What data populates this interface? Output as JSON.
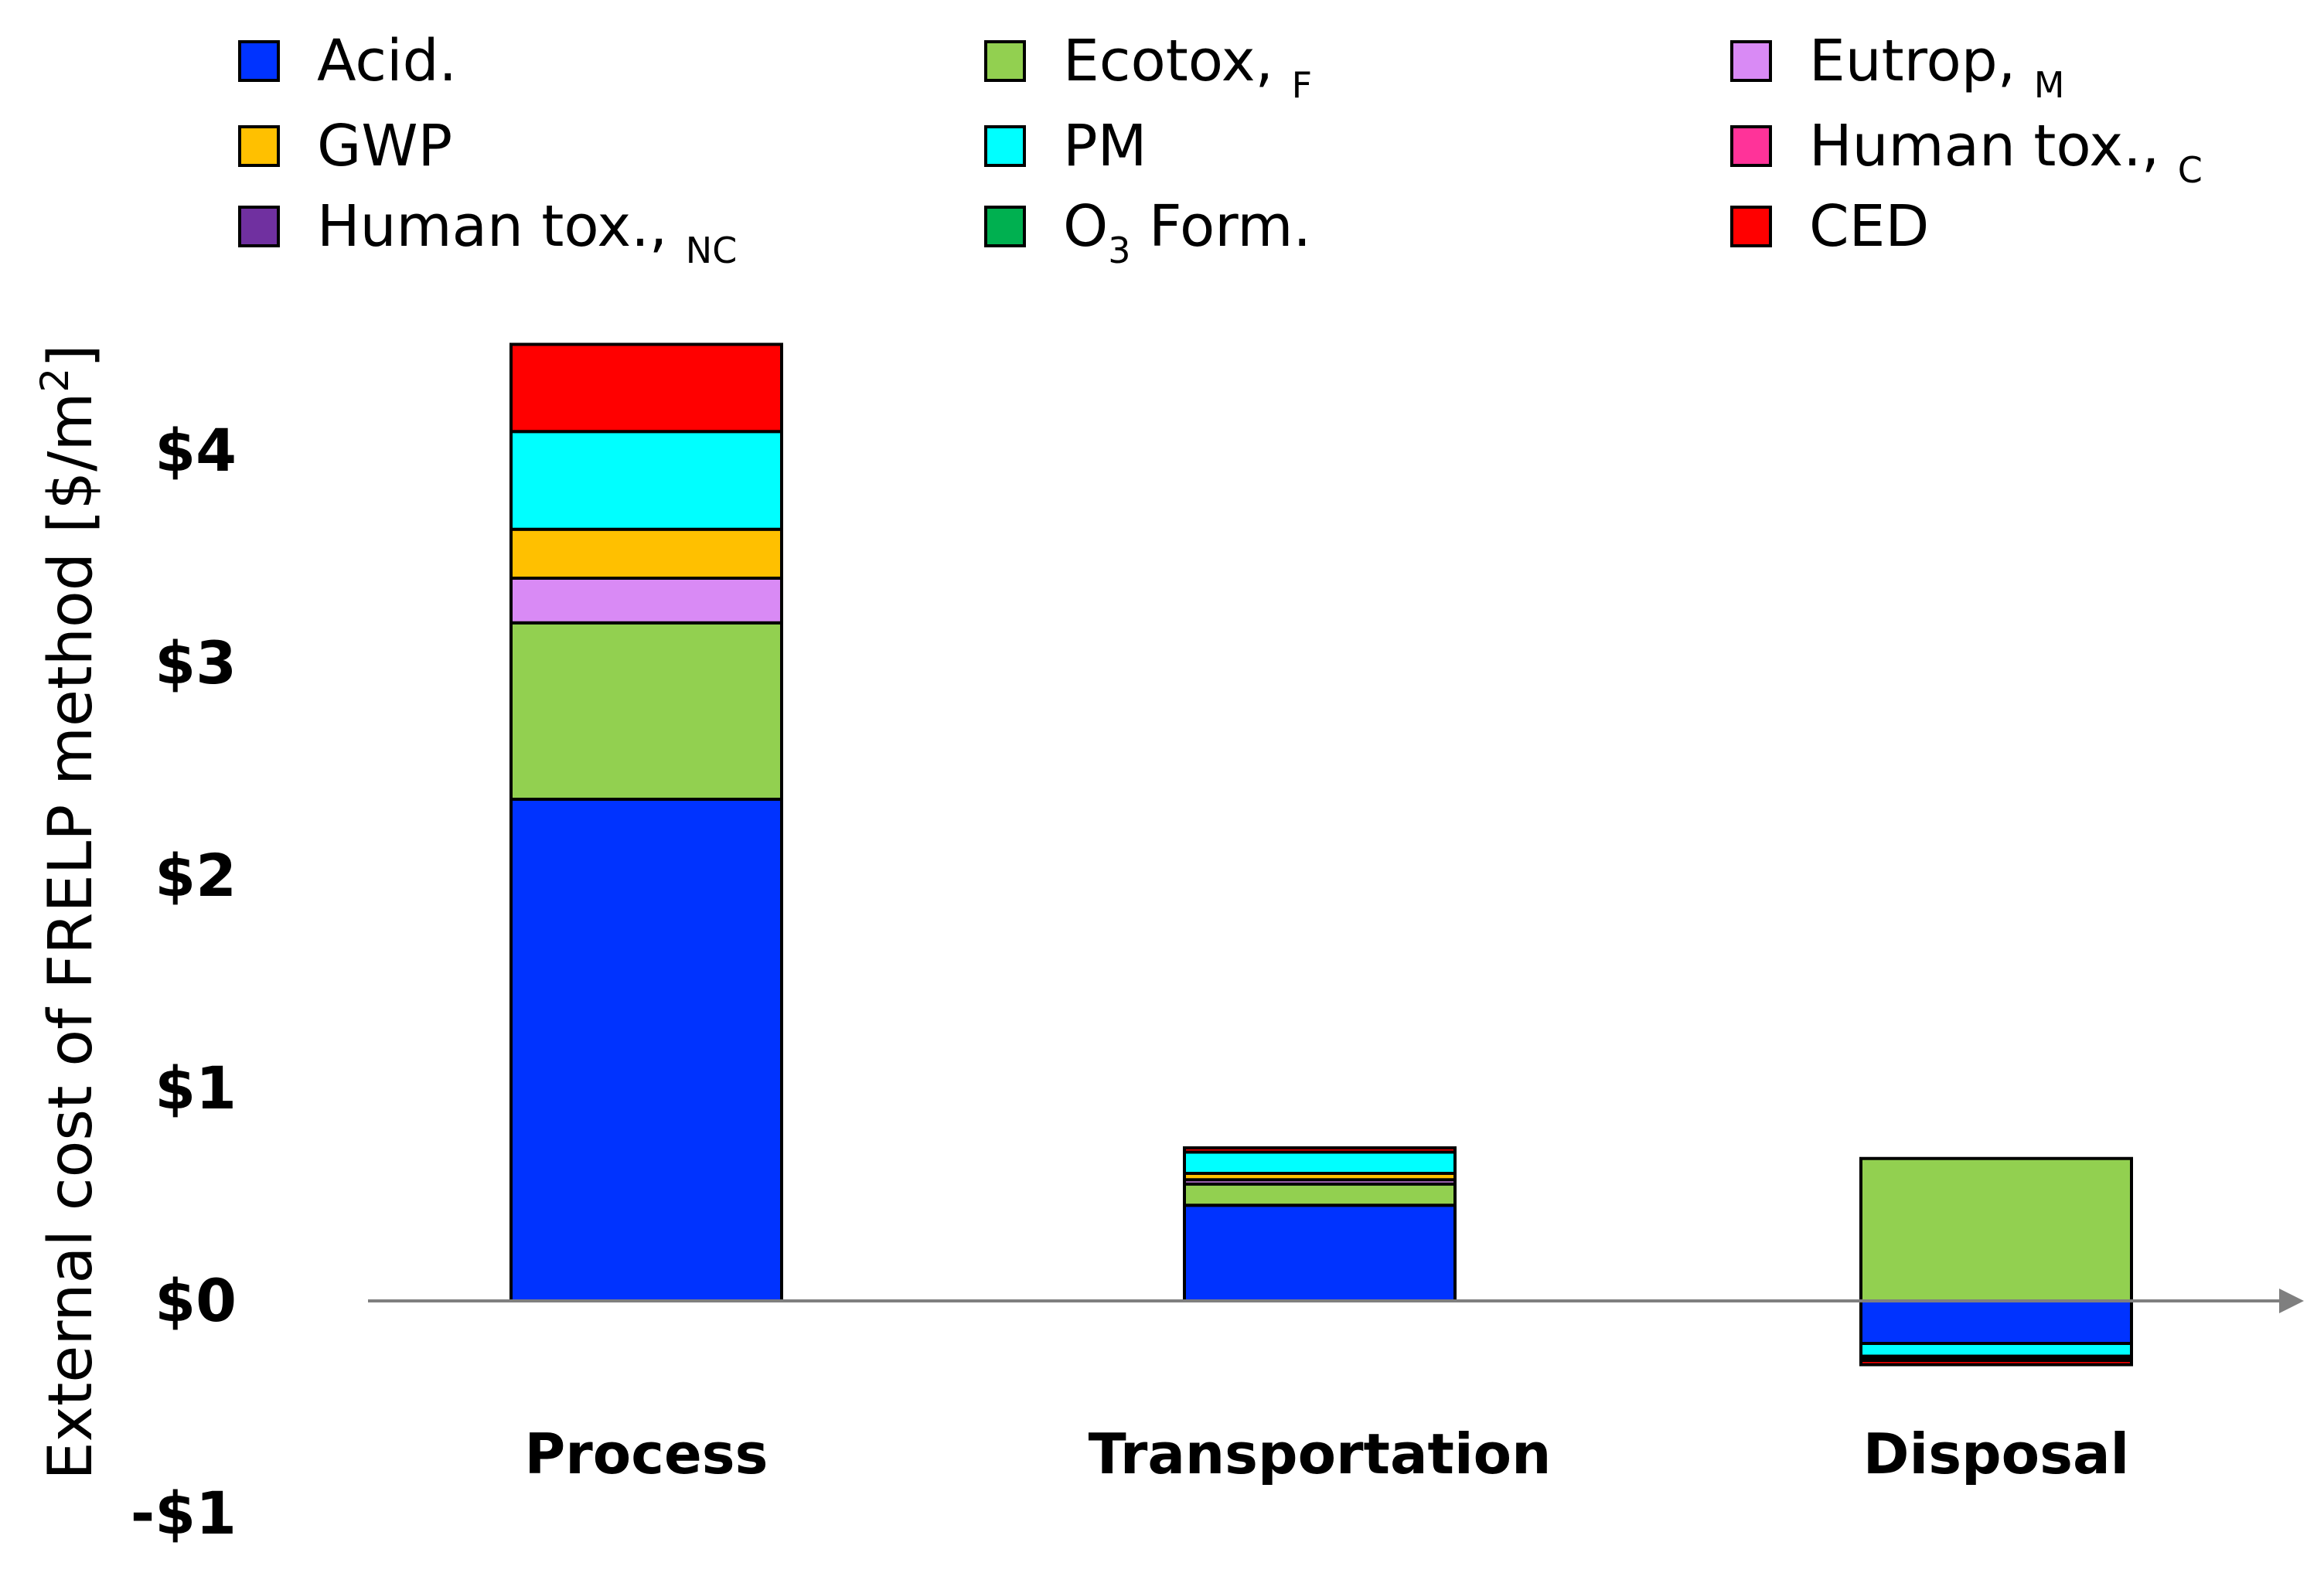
{
  "chart_data": {
    "type": "bar",
    "stacked": true,
    "title": "",
    "xlabel": "",
    "ylabel": "External cost of FRELP method [$/m",
    "ylabel_sup": "2",
    "ylabel_close": "]",
    "ylim": [
      -1,
      4.5
    ],
    "yticks": [
      {
        "value": 4,
        "label": "$4"
      },
      {
        "value": 3,
        "label": "$3"
      },
      {
        "value": 2,
        "label": "$2"
      },
      {
        "value": 1,
        "label": "$1"
      },
      {
        "value": 0,
        "label": "$0"
      },
      {
        "value": -1,
        "label": "-$1"
      }
    ],
    "categories": [
      "Process",
      "Transportation",
      "Disposal"
    ],
    "series": [
      {
        "key": "acid",
        "name": "Acid.",
        "sub": "",
        "color": "#0033FF",
        "values": [
          2.36,
          0.45,
          -0.2
        ]
      },
      {
        "key": "ecotox",
        "name": "Ecotox, ",
        "sub": "F",
        "color": "#92D050",
        "values": [
          0.83,
          0.1,
          0.67
        ]
      },
      {
        "key": "eutrop",
        "name": "Eutrop, ",
        "sub": "M",
        "color": "#D98AF5",
        "values": [
          0.21,
          0.02,
          0.0
        ]
      },
      {
        "key": "gwp",
        "name": "GWP",
        "sub": "",
        "color": "#FFC000",
        "values": [
          0.23,
          0.03,
          0.0
        ]
      },
      {
        "key": "pm",
        "name": " PM",
        "sub": "",
        "color": "#00FFFF",
        "values": [
          0.46,
          0.1,
          -0.06
        ]
      },
      {
        "key": "humantox_c",
        "name": "Human tox., ",
        "sub": "C",
        "color": "#FF3399",
        "values": [
          0.0,
          0.0,
          -0.01
        ]
      },
      {
        "key": "humantox_nc",
        "name": "Human tox., ",
        "sub": "NC",
        "color": "#7030A0",
        "values": [
          0.0,
          0.0,
          -0.005
        ]
      },
      {
        "key": "o3",
        "name": "O",
        "sub": "3",
        "name_after": " Form.",
        "color": "#00B050",
        "values": [
          0.0,
          0.0,
          -0.005
        ]
      },
      {
        "key": "ced",
        "name": "CED",
        "sub": "",
        "color": "#FF0000",
        "values": [
          0.41,
          0.02,
          -0.02
        ]
      }
    ],
    "legend_order": [
      [
        "acid",
        "ecotox",
        "eutrop"
      ],
      [
        "gwp",
        "pm",
        "humantox_c"
      ],
      [
        "humantox_nc",
        "o3",
        "ced"
      ]
    ],
    "stack_order": [
      "acid",
      "ecotox",
      "eutrop",
      "gwp",
      "pm",
      "humantox_c",
      "humantox_nc",
      "o3",
      "ced"
    ],
    "legend_position": "top",
    "grid": false
  }
}
